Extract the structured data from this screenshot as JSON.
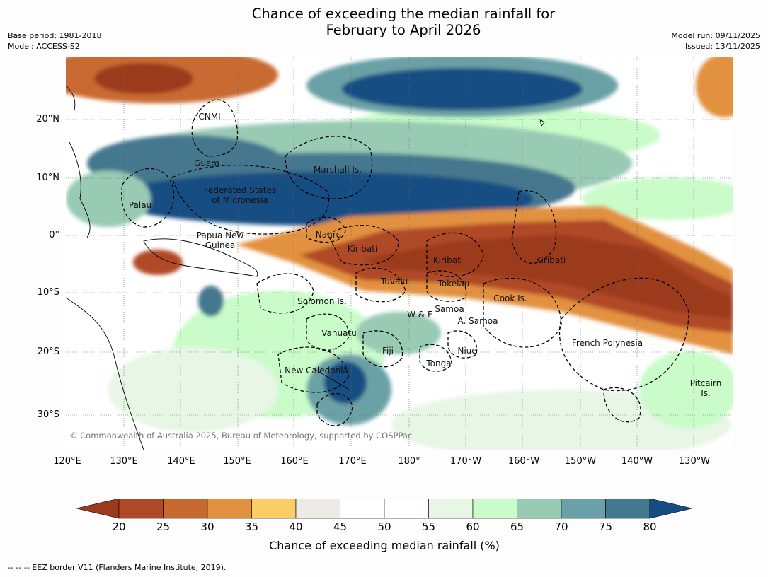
{
  "title_line1": "Chance of exceeding the median rainfall for",
  "title_line2": "February to April 2026",
  "meta_left": {
    "base_period": "Base period: 1981-2018",
    "model": "Model: ACCESS-S2"
  },
  "meta_right": {
    "model_run": "Model run: 09/11/2025",
    "issued": "Issued: 13/11/2025"
  },
  "lat_labels": [
    "20°N",
    "10°N",
    "0°",
    "10°S",
    "20°S",
    "30°S"
  ],
  "lon_labels": [
    "120°E",
    "130°E",
    "140°E",
    "150°E",
    "160°E",
    "170°E",
    "180°",
    "170°W",
    "160°W",
    "150°W",
    "140°W",
    "130°W"
  ],
  "regions": {
    "cnmi": "CNMI",
    "guam": "Guam",
    "marshall": "Marshall Is.",
    "fsm_line1": "Federated States",
    "fsm_line2": "of Micronesia",
    "palau": "Palau",
    "png_line1": "Papua New",
    "png_line2": "Guinea",
    "nauru": "Nauru",
    "kiribati_west": "Kiribati",
    "kiribati_central": "Kiribati",
    "kiribati_east": "Kiribati",
    "tuvalu": "Tuvalu",
    "tokelau": "Tokelau",
    "cook": "Cook Is.",
    "solomon": "Solomon Is.",
    "samoa": "Samoa",
    "wf": "W & F",
    "asamoa": "A. Samoa",
    "vanuatu": "Vanuatu",
    "fiji": "Fiji",
    "niue": "Niue",
    "tonga": "Tonga",
    "new_caledonia": "New Caledonia",
    "french_polynesia": "French Polynesia",
    "pitcairn_line1": "Pitcairn",
    "pitcairn_line2": "Is."
  },
  "copyright": "© Commonwealth of Australia 2025, Bureau of Meteorology, supported by COSPPac",
  "colorbar": {
    "ticks": [
      "20",
      "25",
      "30",
      "35",
      "40",
      "45",
      "50",
      "55",
      "60",
      "65",
      "70",
      "75",
      "80"
    ],
    "colors": [
      "#9c3a1e",
      "#b04a26",
      "#c86a30",
      "#e2913f",
      "#fbcd67",
      "#eeebe6",
      "#ffffff",
      "#ffffff",
      "#e8f6e6",
      "#c9fcc9",
      "#98cab4",
      "#6aa1a6",
      "#44788f",
      "#134d82"
    ],
    "label": "Chance of exceeding median rainfall (%)"
  },
  "footnote": "--  --  -- EEZ border V11 (Flanders Marine Institute, 2019)."
}
